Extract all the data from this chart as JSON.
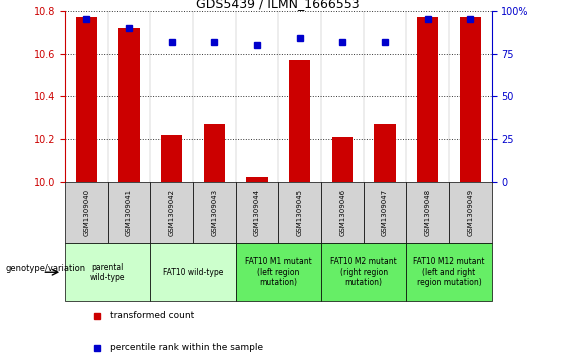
{
  "title": "GDS5439 / ILMN_1666553",
  "samples": [
    "GSM1309040",
    "GSM1309041",
    "GSM1309042",
    "GSM1309043",
    "GSM1309044",
    "GSM1309045",
    "GSM1309046",
    "GSM1309047",
    "GSM1309048",
    "GSM1309049"
  ],
  "red_values": [
    10.77,
    10.72,
    10.22,
    10.27,
    10.02,
    10.57,
    10.21,
    10.27,
    10.77,
    10.77
  ],
  "blue_values": [
    95,
    90,
    82,
    82,
    80,
    84,
    82,
    82,
    95,
    95
  ],
  "ylim_left": [
    10.0,
    10.8
  ],
  "ylim_right": [
    0,
    100
  ],
  "yticks_left": [
    10.0,
    10.2,
    10.4,
    10.6,
    10.8
  ],
  "yticks_right": [
    0,
    25,
    50,
    75,
    100
  ],
  "ytick_labels_right": [
    "0",
    "25",
    "50",
    "75",
    "100%"
  ],
  "groups": [
    {
      "label": "parental\nwild-type",
      "start": 0,
      "end": 1,
      "color": "#ccffcc"
    },
    {
      "label": "FAT10 wild-type",
      "start": 2,
      "end": 3,
      "color": "#ccffcc"
    },
    {
      "label": "FAT10 M1 mutant\n(left region\nmutation)",
      "start": 4,
      "end": 5,
      "color": "#66ee66"
    },
    {
      "label": "FAT10 M2 mutant\n(right region\nmutation)",
      "start": 6,
      "end": 7,
      "color": "#66ee66"
    },
    {
      "label": "FAT10 M12 mutant\n(left and right\nregion mutation)",
      "start": 8,
      "end": 9,
      "color": "#66ee66"
    }
  ],
  "red_color": "#cc0000",
  "blue_color": "#0000cc",
  "bar_baseline": 10.0,
  "legend_red": "transformed count",
  "legend_blue": "percentile rank within the sample",
  "genotype_label": "genotype/variation",
  "grid_color": "black",
  "grid_alpha": 0.8,
  "sample_bg": "#d3d3d3",
  "title_fontsize": 9,
  "tick_fontsize": 7,
  "sample_fontsize": 5,
  "group_fontsize": 5.5,
  "legend_fontsize": 6.5
}
